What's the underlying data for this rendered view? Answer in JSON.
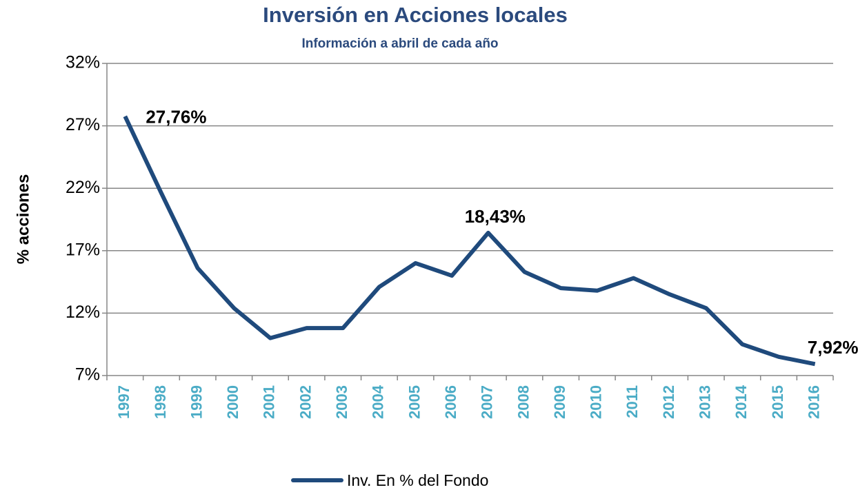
{
  "chart_data": {
    "type": "line",
    "title": "Inversión en Acciones locales",
    "subtitle": "Información a abril de cada año",
    "y_label": "% acciones",
    "categories": [
      "1997",
      "1998",
      "1999",
      "2000",
      "2001",
      "2002",
      "2003",
      "2004",
      "2005",
      "2006",
      "2007",
      "2008",
      "2009",
      "2010",
      "2011",
      "2012",
      "2013",
      "2014",
      "2015",
      "2016"
    ],
    "series": [
      {
        "name": "Inv. En % del Fondo",
        "color": "#1f4a7c",
        "values": [
          27.76,
          21.6,
          15.6,
          12.4,
          10.0,
          10.8,
          10.8,
          14.1,
          16.0,
          15.0,
          18.43,
          15.3,
          14.0,
          13.8,
          14.8,
          13.5,
          12.4,
          9.5,
          8.5,
          7.92
        ],
        "value_labels": [
          "27,76%",
          null,
          null,
          null,
          null,
          null,
          null,
          null,
          null,
          null,
          "18,43%",
          null,
          null,
          null,
          null,
          null,
          null,
          null,
          null,
          "7,92%"
        ]
      }
    ],
    "ylim": [
      7,
      32
    ],
    "yticks": [
      {
        "value": 7,
        "label": "7%"
      },
      {
        "value": 12,
        "label": "12%"
      },
      {
        "value": 17,
        "label": "17%"
      },
      {
        "value": 22,
        "label": "22%"
      },
      {
        "value": 27,
        "label": "27%"
      },
      {
        "value": 32,
        "label": "32%"
      }
    ],
    "grid": true,
    "legend": "bottom"
  }
}
